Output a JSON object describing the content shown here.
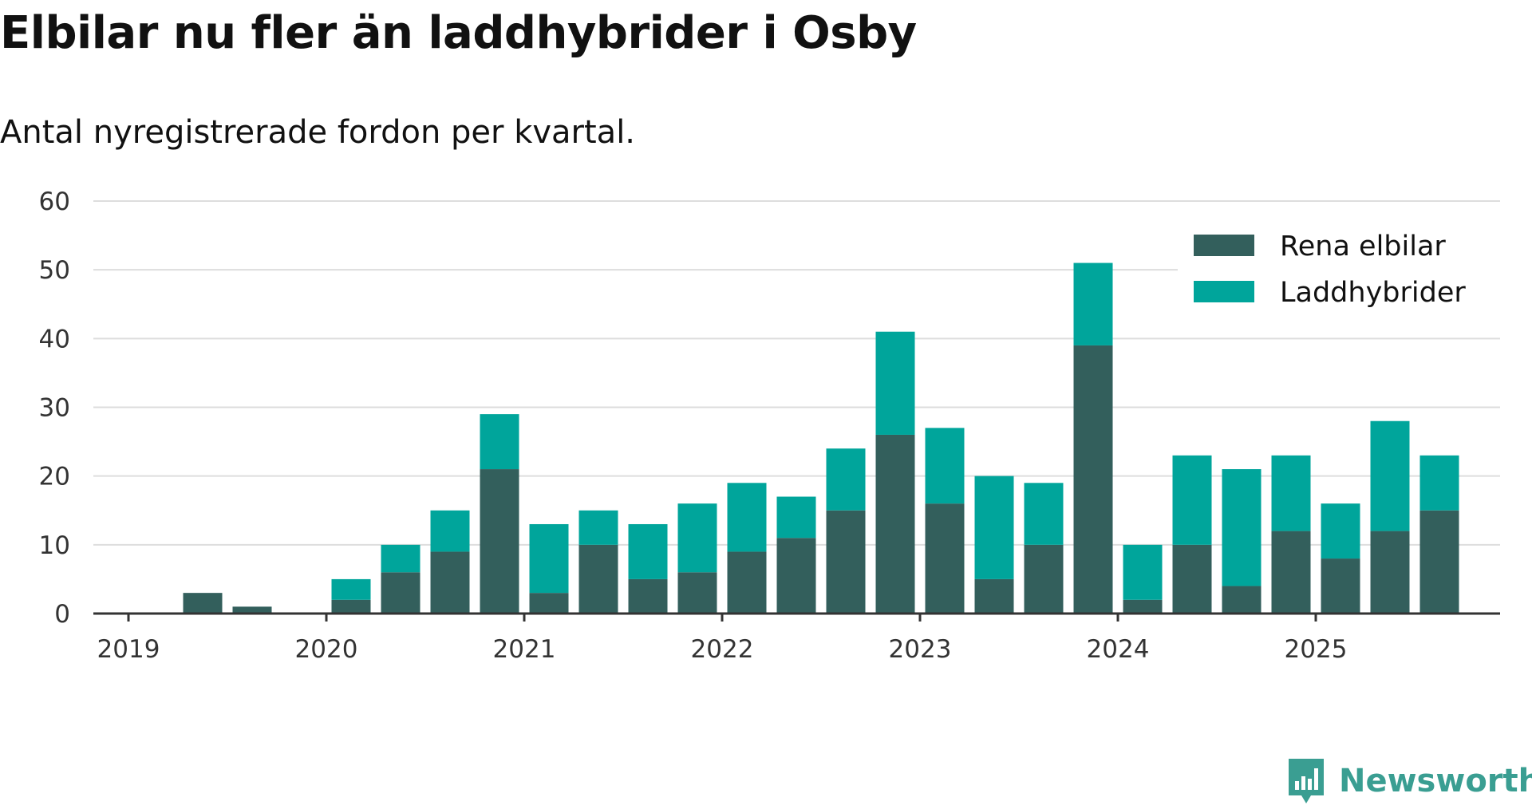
{
  "title": "Elbilar nu fler än laddhybrider i Osby",
  "subtitle": "Antal nyregistrerade fordon per kvartal.",
  "brand": {
    "name": "Newsworthy",
    "color": "#3a9e92",
    "icon": "newsworthy-chart-icon"
  },
  "colors": {
    "rena_elbilar": "#335f5c",
    "laddhybrider": "#00a59b",
    "grid": "#dddddd",
    "axis": "#333333"
  },
  "chart_data": {
    "type": "bar",
    "stacked": true,
    "title": "Elbilar nu fler än laddhybrider i Osby",
    "subtitle": "Antal nyregistrerade fordon per kvartal.",
    "xlabel": "",
    "ylabel": "",
    "ylim": [
      0,
      60
    ],
    "yticks": [
      "0",
      "10",
      "20",
      "30",
      "40",
      "50",
      "60"
    ],
    "xticks": [
      "2019",
      "2020",
      "2021",
      "2022",
      "2023",
      "2024",
      "2025"
    ],
    "categories": [
      "2019 Q1",
      "2019 Q2",
      "2019 Q3",
      "2019 Q4",
      "2020 Q1",
      "2020 Q2",
      "2020 Q3",
      "2020 Q4",
      "2021 Q1",
      "2021 Q2",
      "2021 Q3",
      "2021 Q4",
      "2022 Q1",
      "2022 Q2",
      "2022 Q3",
      "2022 Q4",
      "2023 Q1",
      "2023 Q2",
      "2023 Q3",
      "2023 Q4",
      "2024 Q1",
      "2024 Q2",
      "2024 Q3",
      "2024 Q4",
      "2025 Q1",
      "2025 Q2",
      "2025 Q3"
    ],
    "series": [
      {
        "name": "Rena elbilar",
        "values": [
          0,
          3,
          1,
          0,
          2,
          6,
          9,
          21,
          3,
          10,
          5,
          6,
          9,
          11,
          15,
          26,
          16,
          5,
          10,
          39,
          2,
          10,
          4,
          12,
          8,
          12,
          15
        ]
      },
      {
        "name": "Laddhybrider",
        "values": [
          0,
          0,
          0,
          0,
          3,
          4,
          6,
          8,
          10,
          5,
          8,
          10,
          10,
          6,
          9,
          15,
          11,
          15,
          9,
          12,
          8,
          13,
          17,
          11,
          8,
          16,
          8
        ]
      }
    ],
    "legend": {
      "position": "top-right",
      "entries": [
        "Rena elbilar",
        "Laddhybrider"
      ]
    },
    "grid": true
  }
}
